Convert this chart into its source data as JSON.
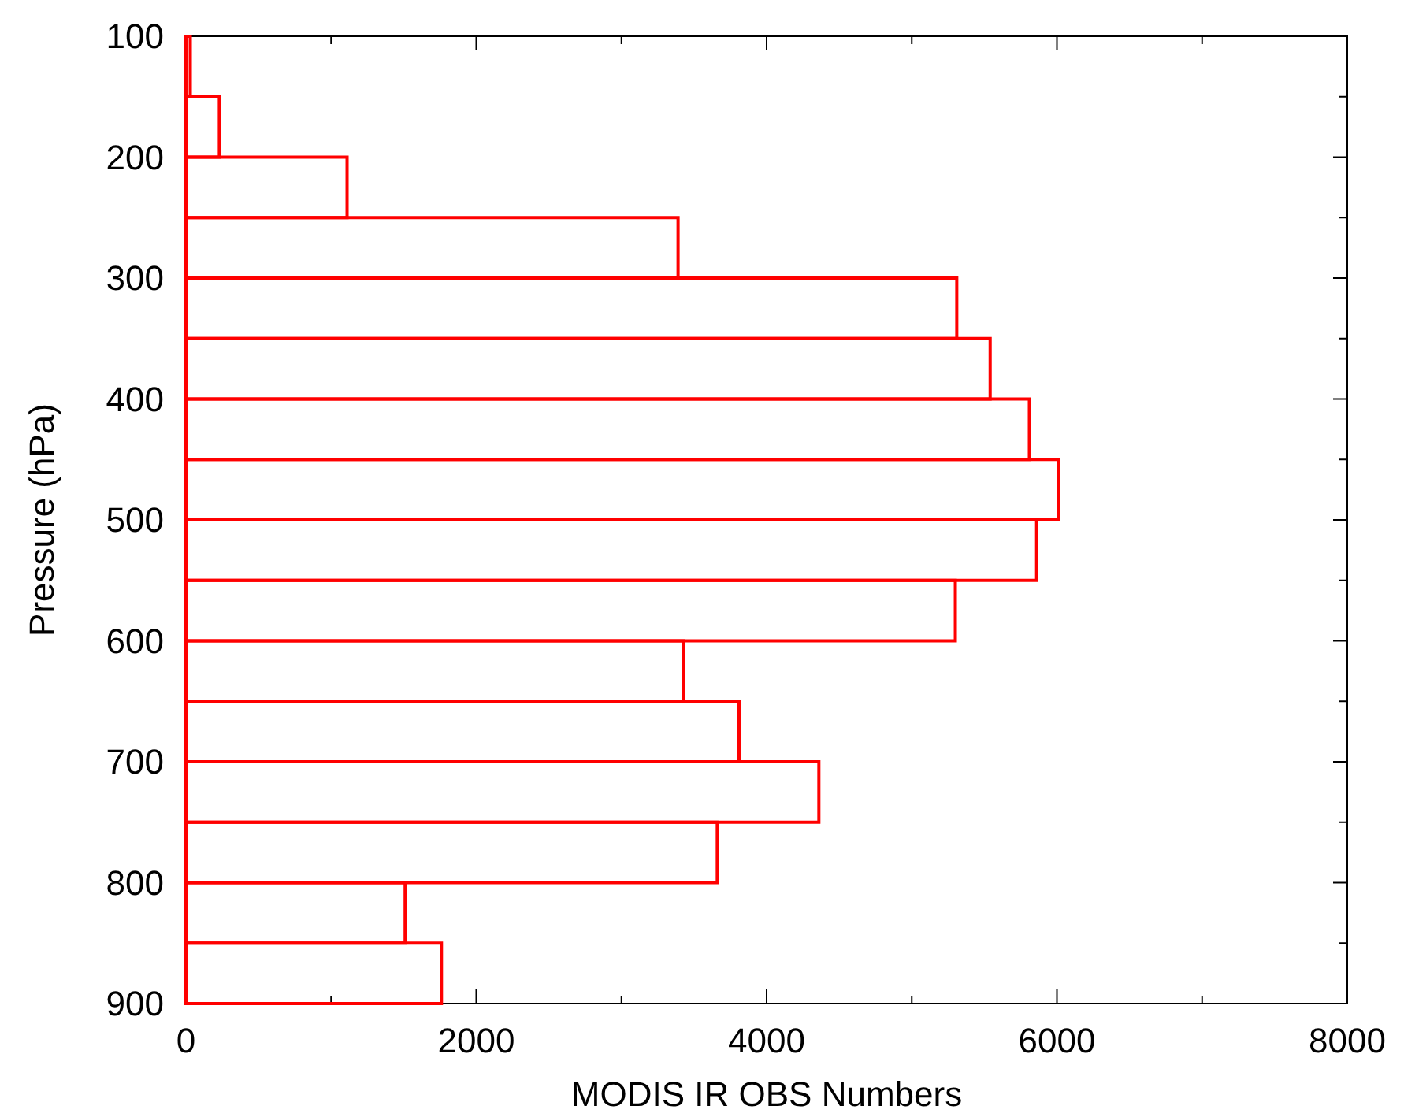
{
  "chart_data": {
    "type": "histogram",
    "orientation": "horizontal",
    "xlabel": "MODIS IR OBS Numbers",
    "ylabel": "Pressure (hPa)",
    "bins": [
      100,
      150,
      200,
      250,
      300,
      350,
      400,
      450,
      500,
      550,
      600,
      650,
      700,
      750,
      800,
      850,
      900
    ],
    "values": [
      30,
      230,
      1110,
      3390,
      5310,
      5540,
      5810,
      6010,
      5860,
      5300,
      3430,
      3810,
      4360,
      3660,
      1510,
      1760
    ],
    "color": "#ff0000",
    "xlim": [
      0,
      8000
    ],
    "xticks": [
      0,
      {
        "value": 1000,
        "label": null
      },
      2000,
      {
        "value": 3000,
        "label": null
      },
      4000,
      {
        "value": 5000,
        "label": null
      },
      6000,
      {
        "value": 7000,
        "label": null
      },
      8000
    ],
    "ylim": [
      900,
      100
    ],
    "yticks": [
      100,
      {
        "value": 150,
        "label": null
      },
      200,
      {
        "value": 250,
        "label": null
      },
      300,
      {
        "value": 350,
        "label": null
      },
      400,
      {
        "value": 450,
        "label": null
      },
      500,
      {
        "value": 550,
        "label": null
      },
      600,
      {
        "value": 650,
        "label": null
      },
      700,
      {
        "value": 750,
        "label": null
      },
      800,
      {
        "value": 850,
        "label": null
      },
      900
    ],
    "grid": false
  }
}
